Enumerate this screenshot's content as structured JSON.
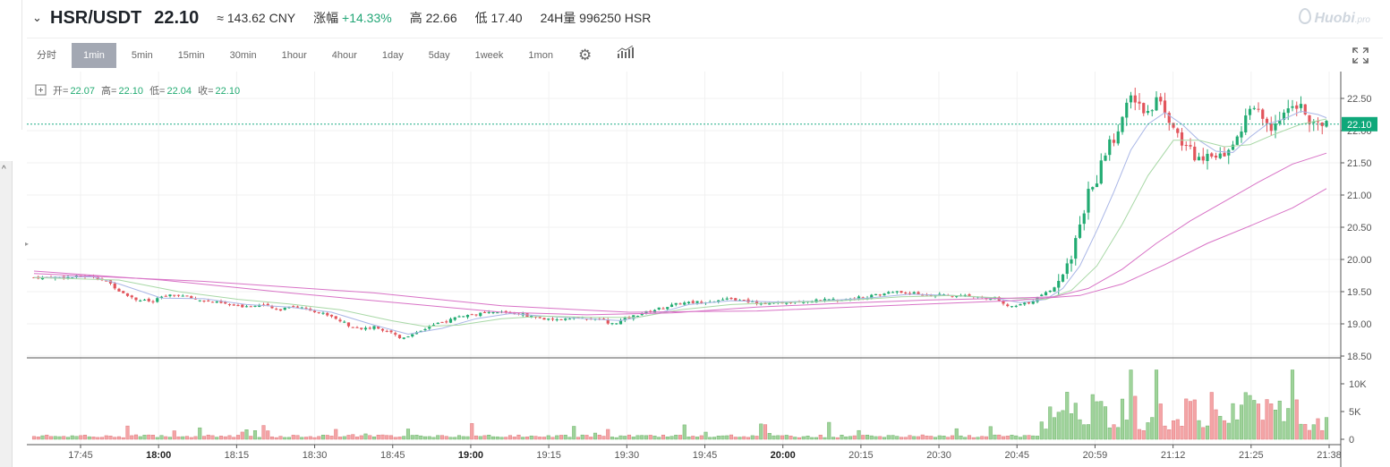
{
  "header": {
    "pair": "HSR/USDT",
    "last_price": "22.10",
    "cny": "≈ 143.62 CNY",
    "change_label": "涨幅",
    "change_value": "+14.33%",
    "high_label": "高",
    "high_value": "22.66",
    "low_label": "低",
    "low_value": "17.40",
    "volume_label": "24H量",
    "volume_value": "996250 HSR",
    "logo_text": "Huobi",
    "logo_suffix": ".pro"
  },
  "toolbar": {
    "intervals": [
      "分时",
      "1min",
      "5min",
      "15min",
      "30min",
      "1hour",
      "4hour",
      "1day",
      "5day",
      "1week",
      "1mon"
    ],
    "active": "1min",
    "settings_icon": "gear-icon",
    "indicator_icon": "bar-chart-icon",
    "fullscreen_icon": "fullscreen-icon"
  },
  "ohlc_legend": {
    "open_label": "开=",
    "open": "22.07",
    "high_label": "高=",
    "high": "22.10",
    "low_label": "低=",
    "low": "22.04",
    "close_label": "收=",
    "close": "22.10"
  },
  "colors": {
    "up": "#22ab72",
    "down": "#e2555c",
    "vol_up": "#9fd39b",
    "vol_down": "#f4a4a6",
    "ma5": "#a9b6e6",
    "ma10": "#a8d8a6",
    "ma30": "#d872c6",
    "price_line": "#1fae86"
  },
  "chart_data": {
    "type": "candlestick",
    "price_axis": {
      "range": [
        18.5,
        22.7
      ],
      "ticks": [
        "22.50",
        "22.00",
        "21.50",
        "21.00",
        "20.50",
        "20.00",
        "19.50",
        "19.00",
        "18.50"
      ],
      "current_price": "22.10"
    },
    "volume_axis": {
      "range": [
        0,
        13500
      ],
      "ticks": [
        "10K",
        "5K",
        "0"
      ]
    },
    "time_axis": {
      "labels": [
        "17:45",
        "18:00",
        "18:15",
        "18:30",
        "18:45",
        "19:00",
        "19:15",
        "19:30",
        "19:45",
        "20:00",
        "20:15",
        "20:30",
        "20:45",
        "20:59",
        "21:12",
        "21:25",
        "21:38"
      ],
      "bold": [
        "18:00",
        "19:00",
        "20:00"
      ]
    },
    "price_path": [
      [
        0,
        19.72
      ],
      [
        10,
        19.73
      ],
      [
        14,
        19.74
      ],
      [
        18,
        19.62
      ],
      [
        20,
        19.52
      ],
      [
        24,
        19.38
      ],
      [
        28,
        19.34
      ],
      [
        30,
        19.42
      ],
      [
        34,
        19.45
      ],
      [
        38,
        19.38
      ],
      [
        44,
        19.32
      ],
      [
        48,
        19.27
      ],
      [
        54,
        19.3
      ],
      [
        56,
        19.24
      ],
      [
        58,
        19.22
      ],
      [
        60,
        19.28
      ],
      [
        64,
        19.24
      ],
      [
        70,
        19.12
      ],
      [
        74,
        18.98
      ],
      [
        78,
        18.92
      ],
      [
        80,
        18.95
      ],
      [
        84,
        18.88
      ],
      [
        86,
        18.78
      ],
      [
        88,
        18.82
      ],
      [
        92,
        18.93
      ],
      [
        96,
        19.02
      ],
      [
        100,
        19.12
      ],
      [
        104,
        19.15
      ],
      [
        110,
        19.18
      ],
      [
        114,
        19.16
      ],
      [
        118,
        19.1
      ],
      [
        122,
        19.05
      ],
      [
        126,
        19.1
      ],
      [
        130,
        19.08
      ],
      [
        134,
        19.05
      ],
      [
        136,
        19.0
      ],
      [
        140,
        19.1
      ],
      [
        146,
        19.22
      ],
      [
        152,
        19.32
      ],
      [
        158,
        19.35
      ],
      [
        164,
        19.38
      ],
      [
        170,
        19.33
      ],
      [
        174,
        19.31
      ],
      [
        178,
        19.35
      ],
      [
        184,
        19.36
      ],
      [
        190,
        19.38
      ],
      [
        196,
        19.42
      ],
      [
        202,
        19.5
      ],
      [
        206,
        19.48
      ],
      [
        210,
        19.45
      ],
      [
        216,
        19.44
      ],
      [
        222,
        19.42
      ],
      [
        226,
        19.4
      ],
      [
        228,
        19.3
      ],
      [
        230,
        19.26
      ],
      [
        234,
        19.33
      ],
      [
        238,
        19.48
      ],
      [
        240,
        19.55
      ],
      [
        242,
        19.75
      ],
      [
        244,
        20.05
      ],
      [
        246,
        20.55
      ],
      [
        248,
        21.02
      ],
      [
        250,
        21.25
      ],
      [
        252,
        21.65
      ],
      [
        254,
        21.9
      ],
      [
        256,
        22.22
      ],
      [
        258,
        22.5
      ],
      [
        260,
        22.4
      ],
      [
        262,
        22.25
      ],
      [
        264,
        22.55
      ],
      [
        266,
        22.35
      ],
      [
        268,
        22.05
      ],
      [
        270,
        21.8
      ],
      [
        272,
        21.7
      ],
      [
        274,
        21.55
      ],
      [
        276,
        21.7
      ],
      [
        278,
        21.62
      ],
      [
        280,
        21.68
      ],
      [
        282,
        21.8
      ],
      [
        284,
        22.05
      ],
      [
        286,
        22.3
      ],
      [
        288,
        22.32
      ],
      [
        290,
        22.05
      ],
      [
        292,
        22.1
      ],
      [
        294,
        22.28
      ],
      [
        296,
        22.45
      ],
      [
        298,
        22.4
      ],
      [
        300,
        22.1
      ],
      [
        302,
        22.08
      ],
      [
        304,
        22.1
      ]
    ],
    "ma5_path": [
      [
        0,
        19.72
      ],
      [
        14,
        19.73
      ],
      [
        20,
        19.62
      ],
      [
        30,
        19.4
      ],
      [
        40,
        19.39
      ],
      [
        50,
        19.3
      ],
      [
        60,
        19.26
      ],
      [
        70,
        19.18
      ],
      [
        80,
        18.98
      ],
      [
        88,
        18.84
      ],
      [
        96,
        18.93
      ],
      [
        104,
        19.08
      ],
      [
        112,
        19.16
      ],
      [
        120,
        19.12
      ],
      [
        130,
        19.08
      ],
      [
        138,
        19.05
      ],
      [
        146,
        19.15
      ],
      [
        154,
        19.3
      ],
      [
        164,
        19.36
      ],
      [
        174,
        19.34
      ],
      [
        184,
        19.35
      ],
      [
        196,
        19.4
      ],
      [
        206,
        19.46
      ],
      [
        216,
        19.44
      ],
      [
        226,
        19.4
      ],
      [
        232,
        19.33
      ],
      [
        238,
        19.38
      ],
      [
        242,
        19.55
      ],
      [
        246,
        19.9
      ],
      [
        250,
        20.45
      ],
      [
        254,
        21.05
      ],
      [
        258,
        21.7
      ],
      [
        262,
        22.1
      ],
      [
        266,
        22.28
      ],
      [
        270,
        22.1
      ],
      [
        274,
        21.85
      ],
      [
        278,
        21.68
      ],
      [
        282,
        21.66
      ],
      [
        286,
        21.9
      ],
      [
        290,
        22.1
      ],
      [
        294,
        22.18
      ],
      [
        298,
        22.3
      ],
      [
        302,
        22.25
      ],
      [
        304,
        22.2
      ]
    ],
    "ma10_path": [
      [
        0,
        19.72
      ],
      [
        20,
        19.68
      ],
      [
        34,
        19.5
      ],
      [
        48,
        19.38
      ],
      [
        60,
        19.31
      ],
      [
        72,
        19.22
      ],
      [
        84,
        19.05
      ],
      [
        92,
        18.96
      ],
      [
        100,
        18.98
      ],
      [
        110,
        19.08
      ],
      [
        120,
        19.12
      ],
      [
        132,
        19.1
      ],
      [
        142,
        19.1
      ],
      [
        152,
        19.22
      ],
      [
        164,
        19.3
      ],
      [
        176,
        19.33
      ],
      [
        190,
        19.36
      ],
      [
        204,
        19.42
      ],
      [
        216,
        19.44
      ],
      [
        228,
        19.4
      ],
      [
        238,
        19.38
      ],
      [
        244,
        19.52
      ],
      [
        250,
        19.9
      ],
      [
        256,
        20.55
      ],
      [
        262,
        21.3
      ],
      [
        268,
        21.85
      ],
      [
        274,
        21.85
      ],
      [
        280,
        21.75
      ],
      [
        286,
        21.78
      ],
      [
        292,
        21.95
      ],
      [
        298,
        22.1
      ],
      [
        304,
        22.18
      ]
    ],
    "ma30_path": [
      [
        0,
        19.82
      ],
      [
        30,
        19.68
      ],
      [
        60,
        19.48
      ],
      [
        90,
        19.3
      ],
      [
        110,
        19.18
      ],
      [
        130,
        19.14
      ],
      [
        150,
        19.17
      ],
      [
        170,
        19.26
      ],
      [
        190,
        19.32
      ],
      [
        210,
        19.37
      ],
      [
        230,
        19.4
      ],
      [
        240,
        19.42
      ],
      [
        248,
        19.55
      ],
      [
        256,
        19.85
      ],
      [
        264,
        20.25
      ],
      [
        272,
        20.6
      ],
      [
        280,
        20.9
      ],
      [
        288,
        21.2
      ],
      [
        296,
        21.48
      ],
      [
        304,
        21.65
      ]
    ],
    "ma60_path": [
      [
        0,
        19.78
      ],
      [
        40,
        19.66
      ],
      [
        80,
        19.48
      ],
      [
        110,
        19.28
      ],
      [
        140,
        19.18
      ],
      [
        170,
        19.2
      ],
      [
        200,
        19.28
      ],
      [
        230,
        19.36
      ],
      [
        246,
        19.44
      ],
      [
        256,
        19.62
      ],
      [
        266,
        19.92
      ],
      [
        276,
        20.25
      ],
      [
        286,
        20.52
      ],
      [
        296,
        20.8
      ],
      [
        304,
        21.1
      ]
    ]
  }
}
